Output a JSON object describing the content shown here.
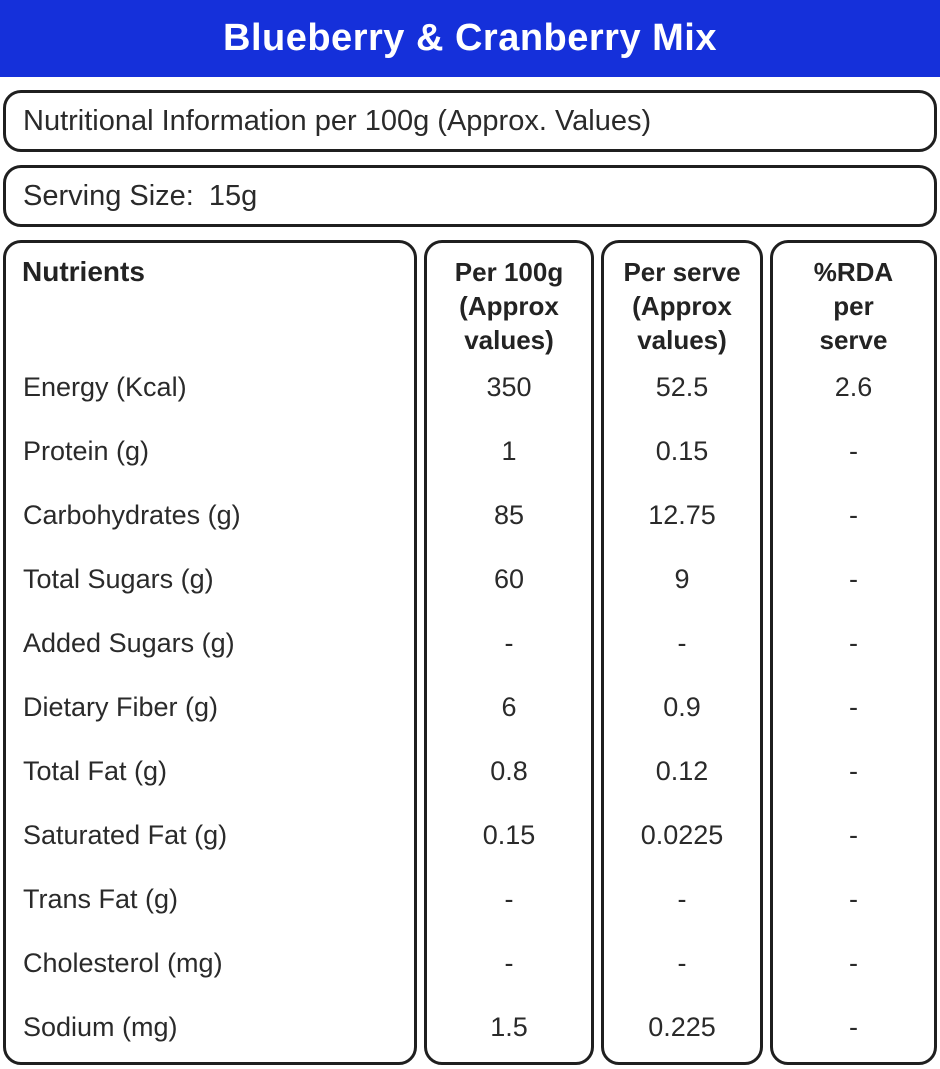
{
  "header": {
    "title": "Blueberry & Cranberry Mix"
  },
  "colors": {
    "header_bg": "#1530da",
    "header_text": "#ffffff",
    "border": "#1f1f1f",
    "text": "#2a2a2a"
  },
  "info_line": "Nutritional Information per 100g (Approx. Values)",
  "serving": {
    "label": "Serving Size:",
    "value": "15g"
  },
  "table": {
    "nutrients_header": "Nutrients",
    "col_headers": {
      "per_100g": {
        "lines": [
          "Per 100g",
          "(Approx",
          "values)"
        ]
      },
      "per_serve": {
        "lines": [
          "Per serve",
          "(Approx",
          "values)"
        ]
      },
      "rda": {
        "lines": [
          "%RDA",
          "per",
          "serve"
        ]
      }
    },
    "rows": [
      {
        "nutrient": "Energy (Kcal)",
        "per_100g": "350",
        "per_serve": "52.5",
        "rda_per_serve": "2.6"
      },
      {
        "nutrient": "Protein (g)",
        "per_100g": "1",
        "per_serve": "0.15",
        "rda_per_serve": "-"
      },
      {
        "nutrient": "Carbohydrates (g)",
        "per_100g": "85",
        "per_serve": "12.75",
        "rda_per_serve": "-"
      },
      {
        "nutrient": "Total Sugars (g)",
        "per_100g": "60",
        "per_serve": "9",
        "rda_per_serve": "-"
      },
      {
        "nutrient": "Added Sugars (g)",
        "per_100g": "-",
        "per_serve": "-",
        "rda_per_serve": "-"
      },
      {
        "nutrient": "Dietary Fiber (g)",
        "per_100g": "6",
        "per_serve": "0.9",
        "rda_per_serve": "-"
      },
      {
        "nutrient": "Total Fat (g)",
        "per_100g": "0.8",
        "per_serve": "0.12",
        "rda_per_serve": "-"
      },
      {
        "nutrient": "Saturated Fat (g)",
        "per_100g": "0.15",
        "per_serve": "0.0225",
        "rda_per_serve": "-"
      },
      {
        "nutrient": "Trans Fat (g)",
        "per_100g": "-",
        "per_serve": "-",
        "rda_per_serve": "-"
      },
      {
        "nutrient": "Cholesterol (mg)",
        "per_100g": "-",
        "per_serve": "-",
        "rda_per_serve": "-"
      },
      {
        "nutrient": "Sodium (mg)",
        "per_100g": "1.5",
        "per_serve": "0.225",
        "rda_per_serve": "-"
      }
    ]
  }
}
